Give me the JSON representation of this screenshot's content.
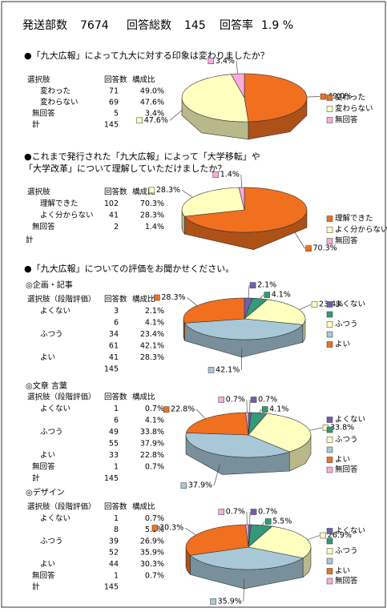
{
  "header": {
    "sent_label": "発送部数",
    "sent": 7674,
    "total_label": "回答総数",
    "total": 145,
    "rate_label": "回答率",
    "rate": "1.9 %"
  },
  "evaluation_question": "●「九大広報」についての評価をお聞かせください。",
  "chart_data": [
    {
      "type": "pie",
      "title": [
        "●「九大広報」によって九大に対する印象は変わりましたか？"
      ],
      "column_headers": [
        "選択肢",
        "回答数",
        "構成比"
      ],
      "categories": [
        "変わった",
        "変わらない",
        "無回答"
      ],
      "counts": [
        71,
        69,
        5
      ],
      "values": [
        49.0,
        47.6,
        3.4
      ],
      "value_labels": [
        "49.0%",
        "47.6%",
        "3.4%"
      ],
      "colors": [
        "#f07020",
        "#ffffc0",
        "#ffaadd"
      ],
      "total_label": "計",
      "total": 145
    },
    {
      "type": "pie",
      "title": [
        "●これまで発行された「九大広報」によって「大学移転」や",
        "「大学改革」について理解していただけましたか？"
      ],
      "column_headers": [
        "選択肢",
        "回答数",
        "構成比"
      ],
      "categories": [
        "理解できた",
        "よく分からない",
        "無回答"
      ],
      "counts": [
        102,
        41,
        2
      ],
      "values": [
        70.3,
        28.3,
        1.4
      ],
      "value_labels": [
        "70.3%",
        "28.3%",
        "1.4%"
      ],
      "colors": [
        "#f07020",
        "#ffffc0",
        "#ffaadd"
      ],
      "total_label": "計"
    },
    {
      "type": "pie",
      "title": [
        "◎企画・記事"
      ],
      "column_headers": [
        "選択肢（段階評価）",
        "回答数",
        "構成比"
      ],
      "categories": [
        "よくない",
        null,
        "ふつう",
        null,
        "よい"
      ],
      "counts": [
        3,
        6,
        34,
        61,
        41
      ],
      "values": [
        2.1,
        4.1,
        23.4,
        42.1,
        28.3
      ],
      "value_labels": [
        "2.1%",
        "4.1%",
        "23.4%",
        "42.1%",
        "28.3%"
      ],
      "colors": [
        "#7060b0",
        "#339977",
        "#ffffc0",
        "#a8c8d8",
        "#f07020"
      ],
      "total": 145
    },
    {
      "type": "pie",
      "title": [
        "◎文章 言葉"
      ],
      "column_headers": [
        "選択肢（段階評価）",
        "回答数",
        "構成比"
      ],
      "categories": [
        "よくない",
        null,
        "ふつう",
        null,
        "よい",
        "無回答"
      ],
      "counts": [
        1,
        6,
        49,
        55,
        33,
        1
      ],
      "values": [
        0.7,
        4.1,
        33.8,
        37.9,
        22.8,
        0.7
      ],
      "value_labels": [
        "0.7%",
        "4.1%",
        "33.8%",
        "37.9%",
        "22.8%",
        "0.7%"
      ],
      "colors": [
        "#7060b0",
        "#339977",
        "#ffffc0",
        "#a8c8d8",
        "#f07020",
        "#ffaadd"
      ],
      "total_label": "計",
      "total": 145
    },
    {
      "type": "pie",
      "title": [
        "◎デザイン"
      ],
      "column_headers": [
        "選択肢（段階評価）",
        "回答数",
        "構成比"
      ],
      "categories": [
        "よくない",
        null,
        "ふつう",
        null,
        "よい",
        "無回答"
      ],
      "counts": [
        1,
        8,
        39,
        52,
        44,
        1
      ],
      "values": [
        0.7,
        5.5,
        26.9,
        35.9,
        30.3,
        0.7
      ],
      "value_labels": [
        "0.7%",
        "5.5%",
        "26.9%",
        "35.9%",
        "30.3%",
        "0.7%"
      ],
      "colors": [
        "#7060b0",
        "#339977",
        "#ffffc0",
        "#a8c8d8",
        "#f07020",
        "#ffaadd"
      ],
      "total_label": "計",
      "total": 145
    }
  ]
}
